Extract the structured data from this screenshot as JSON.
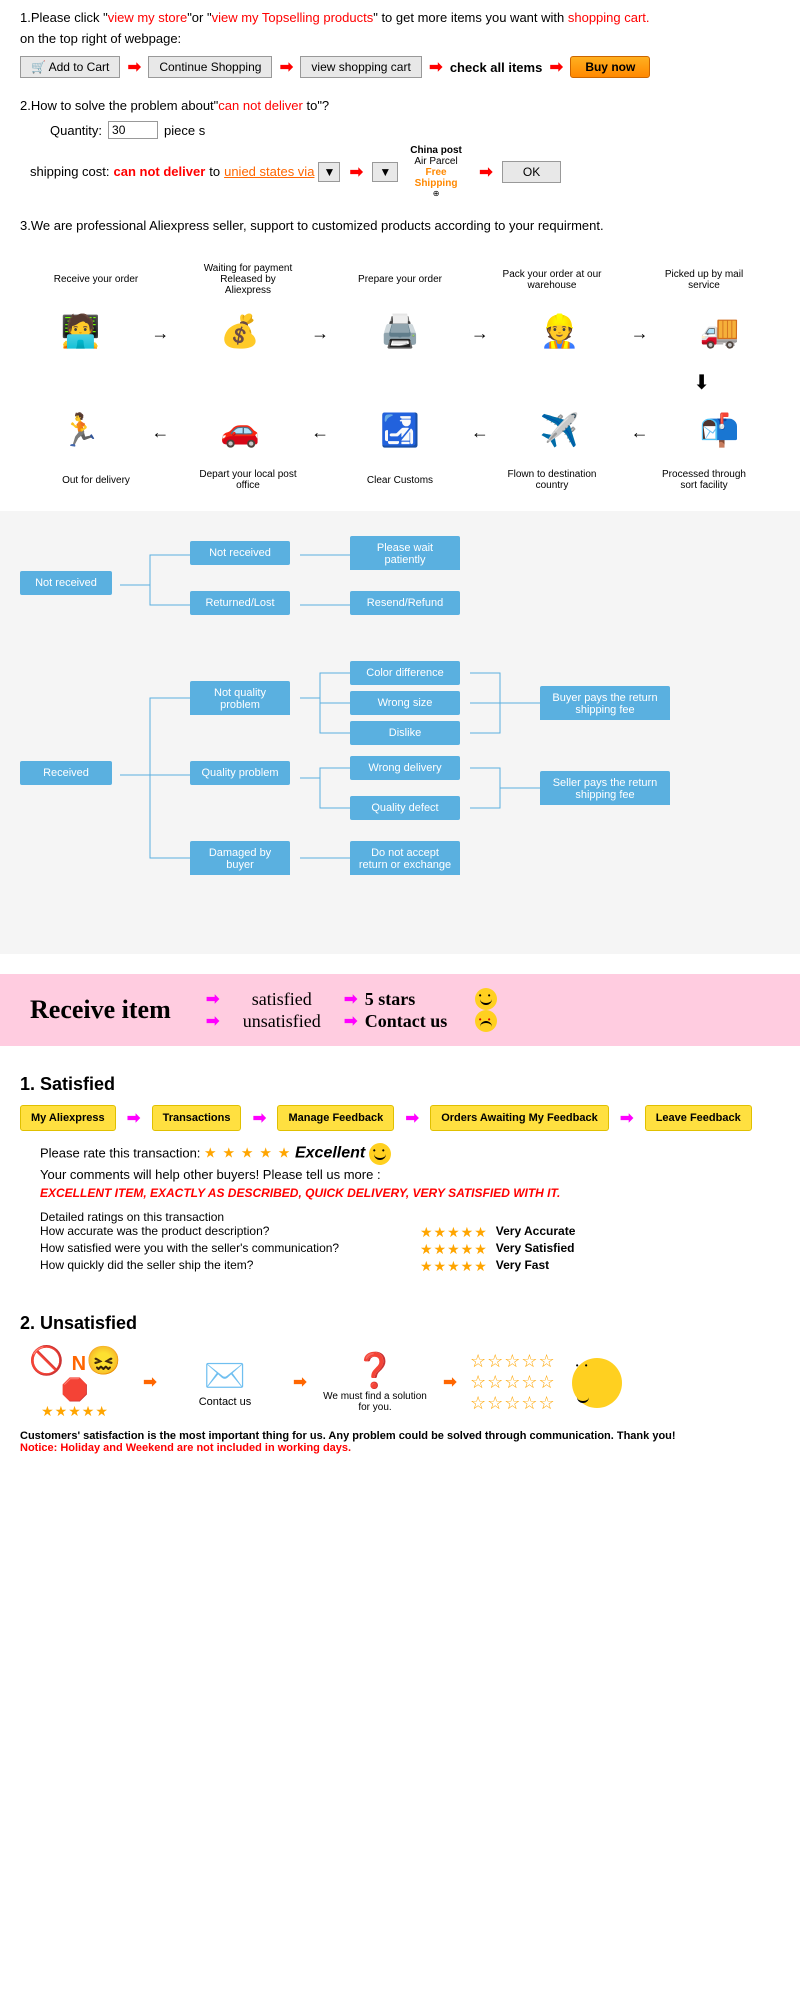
{
  "intro": {
    "line1_pre": "1.Please click \"",
    "link1": "view my store",
    "line1_mid": "\"or \"",
    "link2": "view my Topselling products",
    "line1_post": "\" to get more items you want with ",
    "cart_link": "shopping cart.",
    "line2": "on the top right of webpage:",
    "btn_addcart": "Add to Cart",
    "btn_continue": "Continue Shopping",
    "btn_viewcart": "view shopping cart",
    "txt_checkall": "check all items",
    "btn_buynow": "Buy now"
  },
  "problem": {
    "question_pre": "2.How to solve the problem about\"",
    "cannot": "can not deliver",
    "question_post": " to\"?",
    "qty_label": "Quantity:",
    "qty_value": "30",
    "qty_pieces": "piece s",
    "shipcost_label": "shipping cost:",
    "cannot2": "can not deliver",
    "to_text": " to ",
    "country_link": "unied states via",
    "post_top": "China post",
    "post_sub": "Air Parcel",
    "free1": "Free",
    "free2": "Shipping",
    "ok": "OK"
  },
  "note3": "3.We are professional Aliexpress seller, support to customized products according to your requirment.",
  "order_flow": {
    "top": [
      {
        "label": "Receive your order",
        "icon": "🧑‍💻"
      },
      {
        "label": "Waiting for payment Released by Aliexpress",
        "icon": "💰"
      },
      {
        "label": "Prepare your order",
        "icon": "🖨️"
      },
      {
        "label": "Pack your order at our warehouse",
        "icon": "👷"
      },
      {
        "label": "Picked up by mail service",
        "icon": "🚚"
      }
    ],
    "bottom": [
      {
        "label": "Out for delivery",
        "icon": "🏃"
      },
      {
        "label": "Depart your local post office",
        "icon": "🚗"
      },
      {
        "label": "Clear Customs",
        "icon": "🛃"
      },
      {
        "label": "Flown to destination country",
        "icon": "✈️"
      },
      {
        "label": "Processed through sort facility",
        "icon": "📬"
      }
    ]
  },
  "flowchart": {
    "not_received": "Not received",
    "nr_child1": "Not received",
    "nr_child2": "Returned/Lost",
    "nr_leaf1": "Please wait patiently",
    "nr_leaf2": "Resend/Refund",
    "received": "Received",
    "r_c1": "Not quality problem",
    "r_c2": "Quality problem",
    "r_c3": "Damaged by buyer",
    "l_color": "Color difference",
    "l_size": "Wrong size",
    "l_dislike": "Dislike",
    "l_wrongdel": "Wrong delivery",
    "l_defect": "Quality defect",
    "l_noreturn": "Do not accept return or exchange",
    "fee_buyer": "Buyer pays the return shipping fee",
    "fee_seller": "Seller pays the return shipping fee"
  },
  "receive_band": {
    "title": "Receive item",
    "satisfied": "satisfied",
    "unsatisfied": "unsatisfied",
    "five_stars": "5 stars",
    "contact": "Contact us"
  },
  "satisfied": {
    "heading": "1.  Satisfied",
    "pills": [
      "My Aliexpress",
      "Transactions",
      "Manage Feedback",
      "Orders Awaiting My Feedback",
      "Leave Feedback"
    ],
    "rate_label": "Please rate this transaction:",
    "excellent": "Excellent",
    "comments_label": "Your comments will help other buyers! Please tell us more :",
    "comment_text": "EXCELLENT ITEM, EXACTLY AS DESCRIBED, QUICK DELIVERY, VERY SATISFIED WITH IT.",
    "detail_heading": "Detailed ratings on this transaction",
    "q1": "How accurate was the product description?",
    "q2": "How satisfied were you with the seller's communication?",
    "q3": "How quickly did the seller ship the item?",
    "a1": "Very Accurate",
    "a2": "Very Satisfied",
    "a3": "Very Fast"
  },
  "unsatisfied": {
    "heading": "2.  Unsatisfied",
    "step1_n": "N",
    "step2": "Contact us",
    "step3": "We must find a solution for you.",
    "footer1": "Customers' satisfaction is the most important thing for us. Any problem could be solved through communication. Thank you!",
    "footer2": "Notice: Holiday and Weekend are not included in working days."
  },
  "colors": {
    "blue_box": "#5ab0e0",
    "pink": "#ffcce0",
    "yellow": "#ffe040",
    "arrow_red": "#ff0000",
    "arrow_mag": "#ff00ff",
    "arrow_orange": "#ff6600"
  }
}
